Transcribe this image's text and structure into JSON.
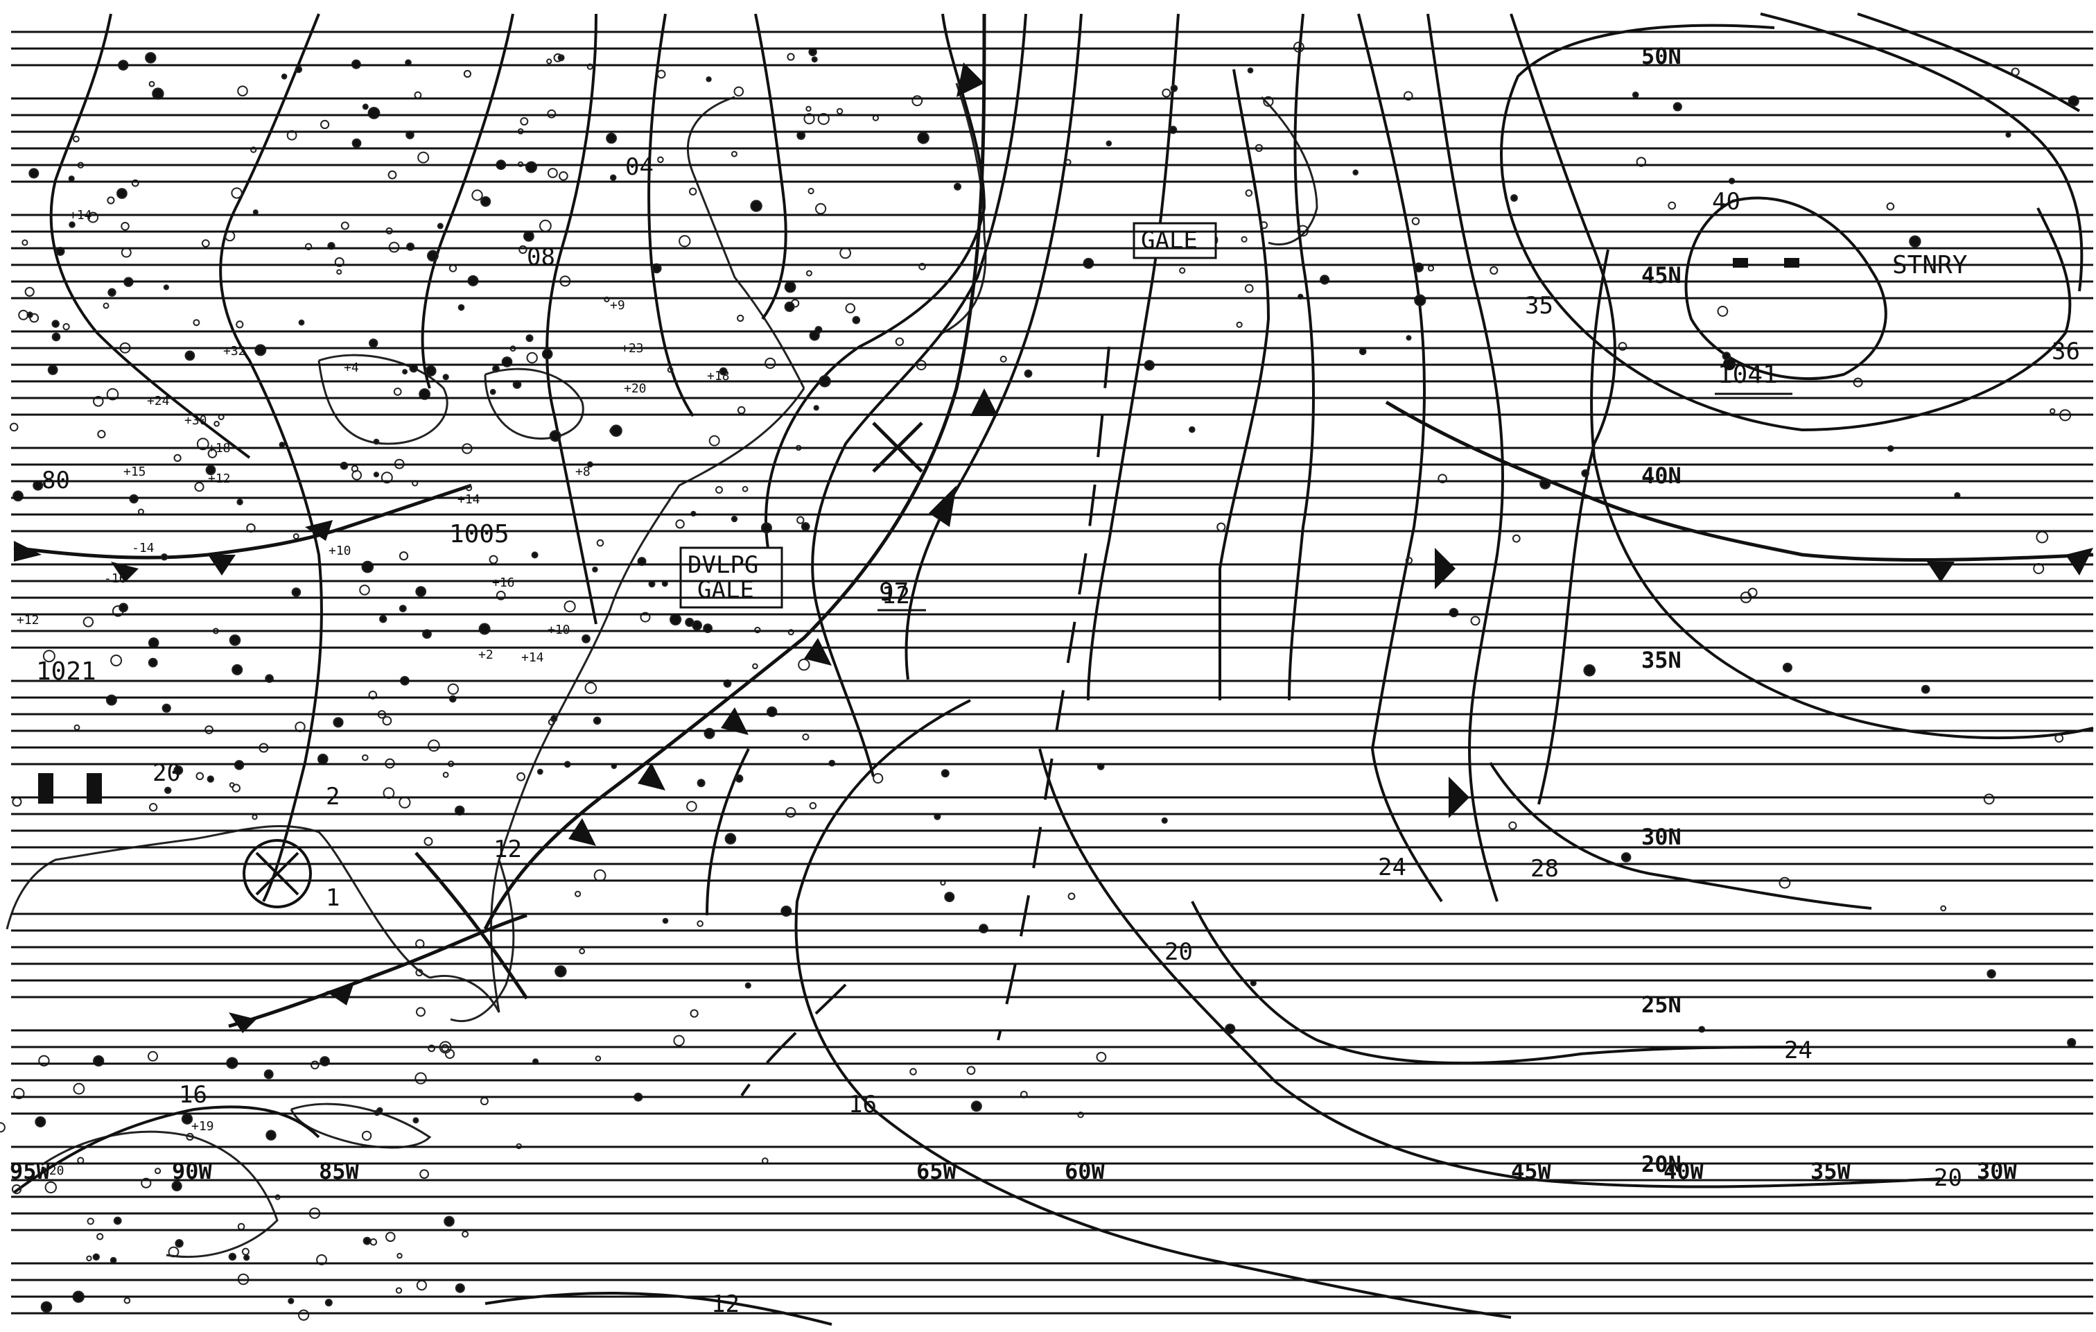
{
  "chart": {
    "isobar_labels": [
      "04",
      "08",
      "12",
      "97",
      "35",
      "40",
      "36",
      "16",
      "20",
      "24",
      "28",
      "12",
      "20",
      "16",
      "12",
      "2",
      "1",
      "20",
      "80",
      "12"
    ],
    "pressure_centers": {
      "high_east": "1041",
      "low_central": "1005",
      "high_west": "1021"
    },
    "warnings": {
      "dvlpg_gale_line1": "DVLPG",
      "dvlpg_gale_line2": "GALE",
      "gale": "GALE"
    },
    "system_labels": {
      "stationary": "STNRY"
    },
    "latitude_labels": [
      "50N",
      "45N",
      "40N",
      "35N",
      "30N",
      "25N",
      "20N"
    ],
    "longitude_labels": [
      "95W",
      "90W",
      "85W",
      "65W",
      "60W",
      "45W",
      "40W",
      "35W",
      "30W"
    ],
    "station_values": [
      "+14",
      "+12",
      "+18",
      "+30",
      "+24",
      "+15",
      "+12",
      "+10",
      "+14",
      "+16",
      "+10",
      "+14",
      "+2",
      "+9",
      "+23",
      "+20",
      "+18",
      "+8",
      "-16",
      "-14",
      "+32",
      "+4",
      "+19",
      "+20"
    ]
  }
}
